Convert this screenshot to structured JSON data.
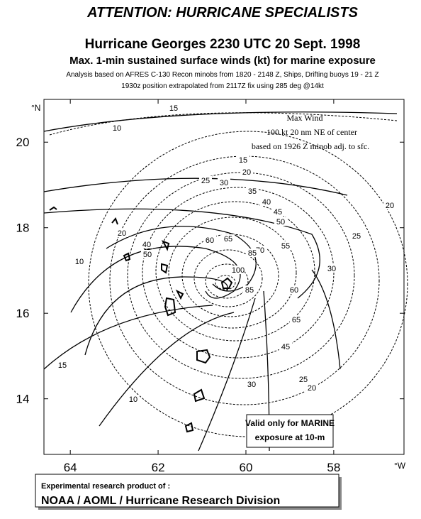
{
  "header": {
    "title": "ATTENTION: HURRICANE SPECIALISTS",
    "subtitle_1": "Hurricane Georges 2230 UTC 20 Sept. 1998",
    "subtitle_2": "Max. 1-min sustained surface winds (kt) for marine exposure",
    "note_1": "Analysis based on AFRES C-130 Recon minobs from 1820 - 2148 Z, Ships, Drifting buoys 19 - 21 Z",
    "note_2": "1930z position extrapolated from 2117Z fix using 285 deg @14kt"
  },
  "map": {
    "xlim": [
      64.6,
      56.4
    ],
    "ylim": [
      12.7,
      21.0
    ],
    "xticks": [
      64,
      62,
      60,
      58
    ],
    "yticks": [
      14,
      16,
      18,
      20
    ],
    "x_unit": "°W",
    "y_unit": "°N",
    "max_wind_box": [
      "Max Wind",
      "100 kt  20 nm NE of center",
      "based on 1926 Z minob adj. to sfc."
    ],
    "marine_box": [
      "Valid only for MARINE",
      "exposure at 10-m"
    ],
    "isotach_labels": [
      15,
      10,
      15,
      20,
      25,
      30,
      35,
      40,
      45,
      50,
      20,
      25,
      30,
      55,
      60,
      65,
      70,
      85,
      100,
      60,
      65,
      45,
      25,
      20,
      30,
      15,
      10,
      20,
      40,
      50,
      10,
      85
    ]
  },
  "footer": {
    "line_1": "Experimental research product of :",
    "line_2": "NOAA / AOML / Hurricane Research Division"
  }
}
